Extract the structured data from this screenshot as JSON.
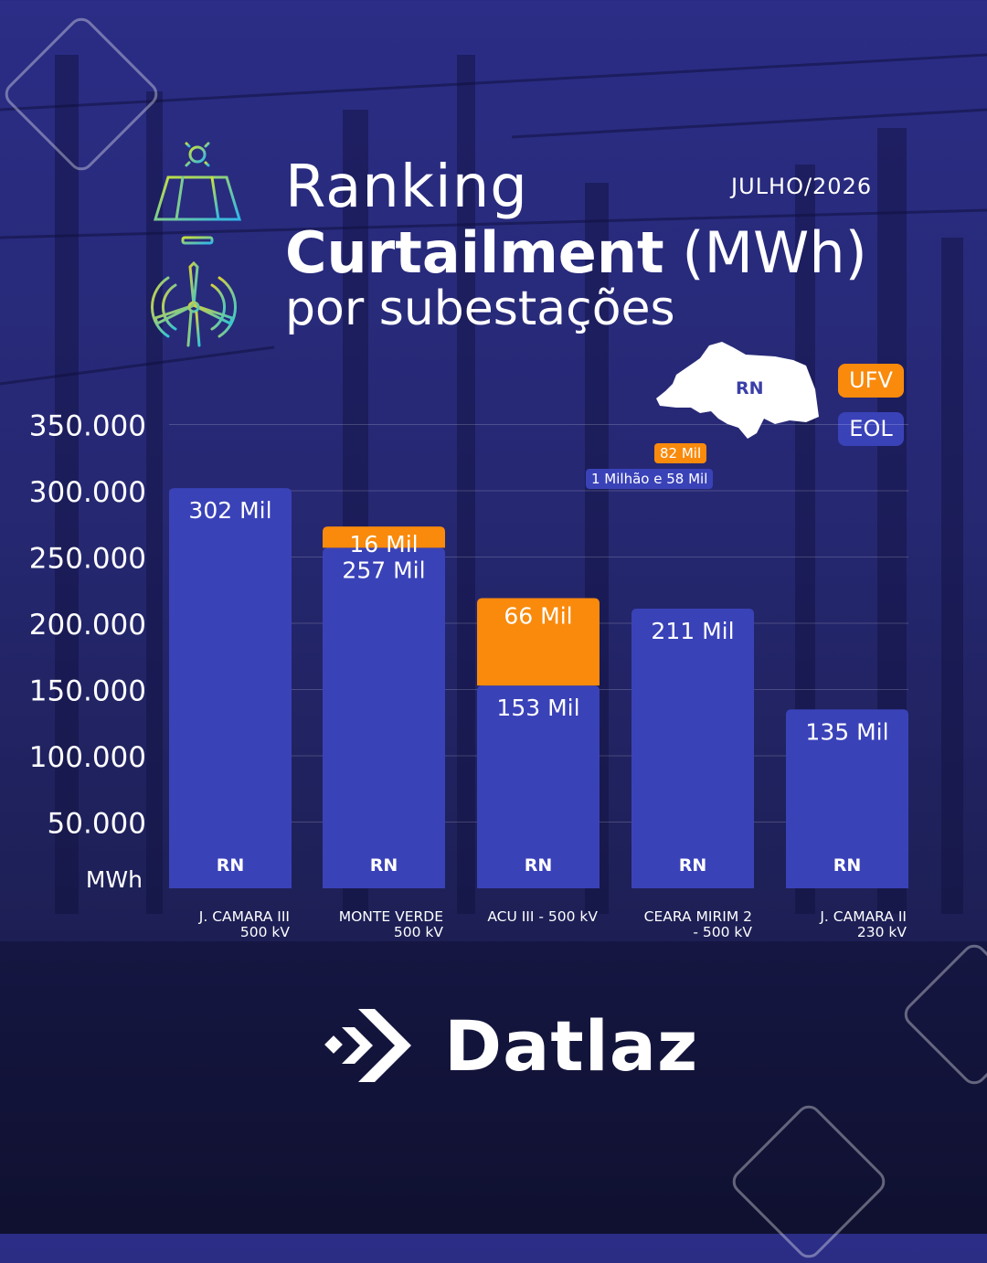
{
  "header": {
    "title_line1": "Ranking",
    "title_bold": "Curtailment",
    "title_unit": "(MWh)",
    "title_line3": "por subestações",
    "date": "JULHO/2026"
  },
  "map": {
    "label": "RN"
  },
  "legend": {
    "ufv": "UFV",
    "eol": "EOL"
  },
  "totals": {
    "ufv": "82 Mil",
    "eol": "1 Milhão e 58 Mil"
  },
  "colors": {
    "ufv": "#f98a0c",
    "eol": "#3a42b8",
    "background": "#262873"
  },
  "icons": [
    "solar-panel-icon",
    "wind-turbine-icon",
    "datlaz-logo-icon"
  ],
  "brand": {
    "name": "Datlaz"
  },
  "chart_data": {
    "type": "bar",
    "stacked": true,
    "ylabel": "MWh",
    "ylim": [
      0,
      350000
    ],
    "yticks": [
      50000,
      100000,
      150000,
      200000,
      250000,
      300000,
      350000
    ],
    "ytick_labels": [
      "50.000",
      "100.000",
      "150.000",
      "200.000",
      "250.000",
      "300.000",
      "350.000"
    ],
    "grid": true,
    "categories": [
      [
        "J. CAMARA III",
        "500 kV"
      ],
      [
        "MONTE VERDE",
        "500 kV"
      ],
      [
        "ACU III - 500 kV"
      ],
      [
        "CEARA MIRIM 2",
        "- 500 kV"
      ],
      [
        "J. CAMARA II",
        "230 kV"
      ]
    ],
    "state_labels": [
      "RN",
      "RN",
      "RN",
      "RN",
      "RN"
    ],
    "series": [
      {
        "name": "EOL",
        "values": [
          302000,
          257000,
          153000,
          211000,
          135000
        ],
        "labels": [
          "302 Mil",
          "257 Mil",
          "153 Mil",
          "211 Mil",
          "135 Mil"
        ]
      },
      {
        "name": "UFV",
        "values": [
          0,
          16000,
          66000,
          0,
          0
        ],
        "labels": [
          "",
          "16 Mil",
          "66 Mil",
          "",
          ""
        ]
      }
    ]
  }
}
